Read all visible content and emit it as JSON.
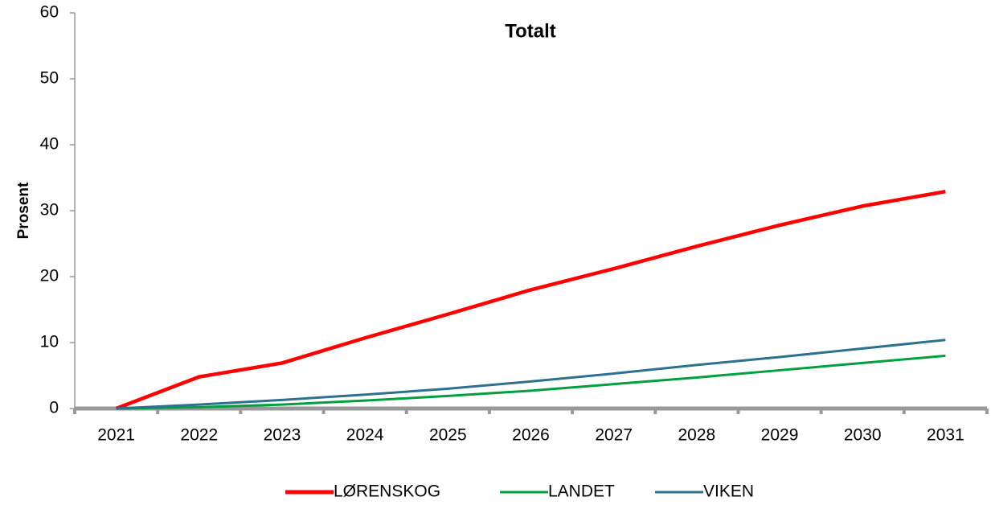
{
  "chart_data": {
    "type": "line",
    "title": "Totalt",
    "y_label": "Prosent",
    "categories": [
      "2021",
      "2022",
      "2023",
      "2024",
      "2025",
      "2026",
      "2027",
      "2028",
      "2029",
      "2030",
      "2031"
    ],
    "series": [
      {
        "name": "LØRENSKOG",
        "color": "#ff0000",
        "values": [
          0,
          4.8,
          6.9,
          10.7,
          14.3,
          18,
          21.2,
          24.6,
          27.8,
          30.7,
          32.9
        ]
      },
      {
        "name": "LANDET",
        "color": "#00a040",
        "values": [
          0,
          0.2,
          0.6,
          1.2,
          1.9,
          2.7,
          3.7,
          4.7,
          5.8,
          6.9,
          8.0
        ]
      },
      {
        "name": "VIKEN",
        "color": "#2e7090",
        "values": [
          0,
          0.6,
          1.3,
          2.1,
          3.0,
          4.1,
          5.3,
          6.6,
          7.8,
          9.1,
          10.4
        ]
      }
    ],
    "ylim": [
      0,
      60
    ],
    "yticks": [
      0,
      10,
      20,
      30,
      40,
      50,
      60
    ],
    "grid": false,
    "legend": "bottom"
  }
}
